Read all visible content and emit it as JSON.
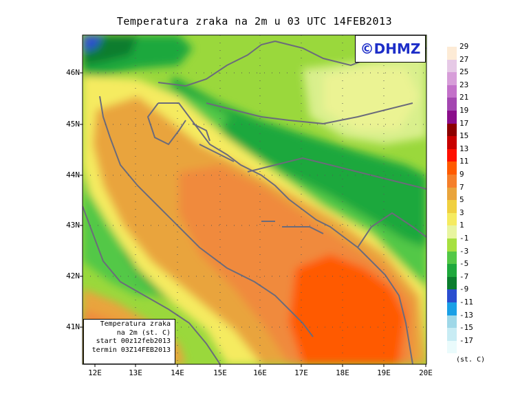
{
  "title": "Temperatura zraka na 2m u 03 UTC 14FEB2013",
  "logo_text": "©DHMZ",
  "info_box": {
    "line1": "Temperatura zraka",
    "line2": "na 2m (st. C)",
    "line3": "start 00z12feb2013",
    "line4": "termin 03Z14FEB2013"
  },
  "lat_labels": [
    "46N",
    "45N",
    "44N",
    "43N",
    "42N",
    "41N"
  ],
  "lon_labels": [
    "12E",
    "13E",
    "14E",
    "15E",
    "16E",
    "17E",
    "18E",
    "19E",
    "20E"
  ],
  "legend": {
    "units": "(st. C)",
    "labels": [
      "29",
      "27",
      "25",
      "23",
      "21",
      "19",
      "17",
      "15",
      "13",
      "11",
      "9",
      "7",
      "5",
      "3",
      "1",
      "-1",
      "-3",
      "-5",
      "-7",
      "-9",
      "-11",
      "-13",
      "-15",
      "-17"
    ],
    "colors": [
      "#fdebd6",
      "#e6c9e6",
      "#d79ed9",
      "#c371c9",
      "#a347b0",
      "#8a0e8a",
      "#8c0000",
      "#c80000",
      "#ff1000",
      "#ff5a00",
      "#f57f2a",
      "#e9a43c",
      "#f0d040",
      "#f5eb60",
      "#e8f5a0",
      "#a6e040",
      "#53c846",
      "#1ea83c",
      "#0b7d2e",
      "#2a4ed0",
      "#1aa0e6",
      "#9fd8e8",
      "#c8ecf4",
      "#eafbfc"
    ]
  },
  "colors": {
    "sea_warm": "#f08a3c",
    "sea_orange": "#e99f45",
    "land_green": "#9ad83c",
    "coast": "#6b6b7b"
  }
}
